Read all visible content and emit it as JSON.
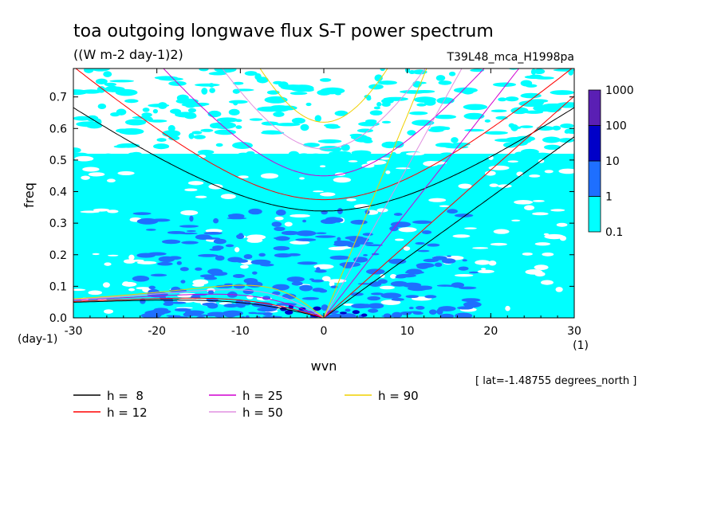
{
  "chart_data": {
    "type": "heatmap",
    "title": "toa outgoing longwave flux S-T power spectrum",
    "subtitle": "((W m-2 day-1)2)",
    "dataset": "T39L48_mca_H1998pa",
    "xlabel": "wvn",
    "ylabel": "freq",
    "x_unit": "(1)",
    "y_unit": "(day-1)",
    "xlim": [
      -30,
      30
    ],
    "ylim": [
      0,
      0.79
    ],
    "x_ticks": [
      -30,
      -20,
      -10,
      0,
      10,
      20,
      30
    ],
    "x_tick_labels": [
      "-30",
      "-20",
      "-10",
      "0",
      "10",
      "20",
      "30"
    ],
    "y_ticks": [
      0.0,
      0.1,
      0.2,
      0.3,
      0.4,
      0.5,
      0.6,
      0.7
    ],
    "y_tick_labels": [
      "0.0",
      "0.1",
      "0.2",
      "0.3",
      "0.4",
      "0.5",
      "0.6",
      "0.7"
    ],
    "annotation": "[ lat=-1.48755 degrees_north ]",
    "colorbar": {
      "levels": [
        "0.1",
        "1",
        "10",
        "100",
        "1000"
      ],
      "colors": [
        "#00ffff",
        "#1e6fff",
        "#0000c8",
        "#5a1fb4"
      ]
    },
    "shading_regions": [
      {
        "level": 1,
        "description": "background power 0.1-1 over most of domain, x -30..30, freq 0..0.75"
      },
      {
        "level": 2,
        "x": [
          -14,
          12
        ],
        "y": [
          0.0,
          0.32
        ],
        "note": "power 1-10 concentrated at low frequencies"
      }
    ],
    "dispersion_curves": [
      {
        "name": "h =  8",
        "color": "#000000",
        "equivalent_depth": 8
      },
      {
        "name": "h = 12",
        "color": "#ff0000",
        "equivalent_depth": 12
      },
      {
        "name": "h = 25",
        "color": "#d000d0",
        "equivalent_depth": 25
      },
      {
        "name": "h = 50",
        "color": "#e090e0",
        "equivalent_depth": 50
      },
      {
        "name": "h = 90",
        "color": "#f0d000",
        "equivalent_depth": 90
      }
    ]
  }
}
